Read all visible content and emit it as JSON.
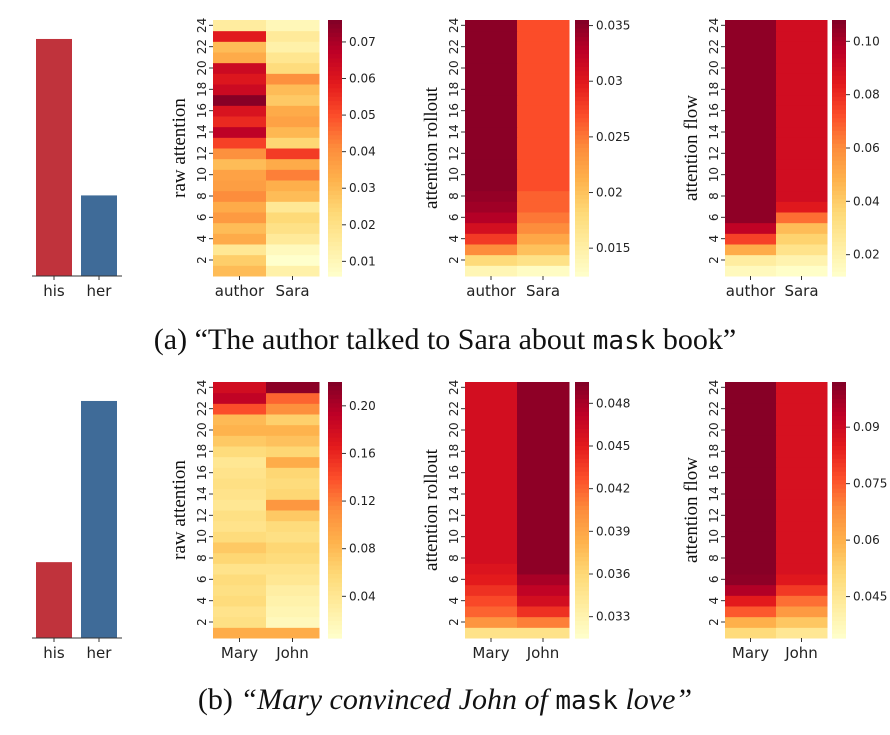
{
  "captions": {
    "a": {
      "prefix": "(a) “The author talked to Sara about ",
      "mask": "mask",
      "suffix": " book”"
    },
    "b": {
      "label": "(b) ",
      "quote_a": "“Mary convinced John of ",
      "mask": "mask",
      "quote_b": " love”"
    }
  },
  "colors": {
    "his": "#c0333c",
    "her": "#3f6b98",
    "colormap": "YlOrRd"
  },
  "chart_data": [
    {
      "type": "bar",
      "row": 0,
      "categories": [
        "his",
        "her"
      ],
      "values": [
        1.0,
        0.34
      ],
      "ylim": [
        0,
        1.08
      ],
      "colors": [
        "#c0333c",
        "#3f6b98"
      ]
    },
    {
      "type": "heatmap",
      "row": 0,
      "ylabel": "raw attention",
      "x_labels": [
        "author",
        "Sara"
      ],
      "y_ticks": [
        2,
        4,
        6,
        8,
        10,
        12,
        14,
        16,
        18,
        20,
        22,
        24
      ],
      "colorbar_ticks": [
        0.01,
        0.02,
        0.03,
        0.04,
        0.05,
        0.06,
        0.07
      ],
      "vmin": 0.006,
      "vmax": 0.076,
      "values": [
        [
          0.03,
          0.013
        ],
        [
          0.026,
          0.006
        ],
        [
          0.017,
          0.009
        ],
        [
          0.034,
          0.016
        ],
        [
          0.03,
          0.02
        ],
        [
          0.038,
          0.023
        ],
        [
          0.034,
          0.017
        ],
        [
          0.041,
          0.03
        ],
        [
          0.037,
          0.033
        ],
        [
          0.036,
          0.043
        ],
        [
          0.03,
          0.034
        ],
        [
          0.04,
          0.053
        ],
        [
          0.052,
          0.024
        ],
        [
          0.067,
          0.031
        ],
        [
          0.056,
          0.036
        ],
        [
          0.061,
          0.034
        ],
        [
          0.075,
          0.027
        ],
        [
          0.064,
          0.03
        ],
        [
          0.06,
          0.04
        ],
        [
          0.064,
          0.022
        ],
        [
          0.034,
          0.018
        ],
        [
          0.03,
          0.013
        ],
        [
          0.059,
          0.016
        ],
        [
          0.015,
          0.01
        ]
      ]
    },
    {
      "type": "heatmap",
      "row": 0,
      "ylabel": "attention rollout",
      "x_labels": [
        "author",
        "Sara"
      ],
      "y_ticks": [
        2,
        4,
        6,
        8,
        10,
        12,
        14,
        16,
        18,
        20,
        22,
        24
      ],
      "colorbar_ticks": [
        0.015,
        0.02,
        0.025,
        0.03,
        0.035
      ],
      "vmin": 0.0125,
      "vmax": 0.0355,
      "values": [
        [
          0.014,
          0.013
        ],
        [
          0.018,
          0.017
        ],
        [
          0.024,
          0.02
        ],
        [
          0.028,
          0.022
        ],
        [
          0.031,
          0.024
        ],
        [
          0.033,
          0.025
        ],
        [
          0.034,
          0.026
        ],
        [
          0.0345,
          0.026
        ],
        [
          0.035,
          0.027
        ],
        [
          0.035,
          0.027
        ],
        [
          0.035,
          0.027
        ],
        [
          0.035,
          0.027
        ],
        [
          0.035,
          0.027
        ],
        [
          0.035,
          0.027
        ],
        [
          0.035,
          0.027
        ],
        [
          0.035,
          0.027
        ],
        [
          0.035,
          0.027
        ],
        [
          0.035,
          0.027
        ],
        [
          0.035,
          0.027
        ],
        [
          0.035,
          0.027
        ],
        [
          0.035,
          0.027
        ],
        [
          0.035,
          0.027
        ],
        [
          0.035,
          0.027
        ],
        [
          0.035,
          0.027
        ]
      ]
    },
    {
      "type": "heatmap",
      "row": 0,
      "ylabel": "attention flow",
      "x_labels": [
        "author",
        "Sara"
      ],
      "y_ticks": [
        2,
        4,
        6,
        8,
        10,
        12,
        14,
        16,
        18,
        20,
        22,
        24
      ],
      "colorbar_ticks": [
        0.02,
        0.04,
        0.06,
        0.08,
        0.1
      ],
      "vmin": 0.012,
      "vmax": 0.108,
      "values": [
        [
          0.016,
          0.013
        ],
        [
          0.024,
          0.02
        ],
        [
          0.05,
          0.03
        ],
        [
          0.075,
          0.038
        ],
        [
          0.095,
          0.045
        ],
        [
          0.105,
          0.066
        ],
        [
          0.105,
          0.085
        ],
        [
          0.105,
          0.09
        ],
        [
          0.105,
          0.09
        ],
        [
          0.105,
          0.09
        ],
        [
          0.105,
          0.09
        ],
        [
          0.105,
          0.09
        ],
        [
          0.105,
          0.09
        ],
        [
          0.105,
          0.09
        ],
        [
          0.105,
          0.09
        ],
        [
          0.105,
          0.09
        ],
        [
          0.105,
          0.09
        ],
        [
          0.105,
          0.09
        ],
        [
          0.105,
          0.09
        ],
        [
          0.105,
          0.09
        ],
        [
          0.105,
          0.09
        ],
        [
          0.105,
          0.09
        ],
        [
          0.105,
          0.09
        ],
        [
          0.105,
          0.09
        ]
      ]
    },
    {
      "type": "bar",
      "row": 1,
      "categories": [
        "his",
        "her"
      ],
      "values": [
        0.32,
        1.0
      ],
      "ylim": [
        0,
        1.08
      ],
      "colors": [
        "#c0333c",
        "#3f6b98"
      ]
    },
    {
      "type": "heatmap",
      "row": 1,
      "ylabel": "raw attention",
      "x_labels": [
        "Mary",
        "John"
      ],
      "y_ticks": [
        2,
        4,
        6,
        8,
        10,
        12,
        14,
        16,
        18,
        20,
        22,
        24
      ],
      "colorbar_ticks": [
        0.04,
        0.08,
        0.12,
        0.16,
        0.2
      ],
      "vmin": 0.005,
      "vmax": 0.22,
      "values": [
        [
          0.09,
          0.09
        ],
        [
          0.05,
          0.015
        ],
        [
          0.045,
          0.02
        ],
        [
          0.055,
          0.025
        ],
        [
          0.05,
          0.03
        ],
        [
          0.055,
          0.04
        ],
        [
          0.045,
          0.045
        ],
        [
          0.06,
          0.055
        ],
        [
          0.07,
          0.06
        ],
        [
          0.055,
          0.05
        ],
        [
          0.045,
          0.055
        ],
        [
          0.05,
          0.07
        ],
        [
          0.04,
          0.105
        ],
        [
          0.045,
          0.06
        ],
        [
          0.05,
          0.055
        ],
        [
          0.045,
          0.06
        ],
        [
          0.04,
          0.09
        ],
        [
          0.055,
          0.06
        ],
        [
          0.07,
          0.075
        ],
        [
          0.085,
          0.085
        ],
        [
          0.08,
          0.065
        ],
        [
          0.14,
          0.11
        ],
        [
          0.19,
          0.13
        ],
        [
          0.18,
          0.215
        ]
      ]
    },
    {
      "type": "heatmap",
      "row": 1,
      "ylabel": "attention rollout",
      "x_labels": [
        "Mary",
        "John"
      ],
      "y_ticks": [
        2,
        4,
        6,
        8,
        10,
        12,
        14,
        16,
        18,
        20,
        22,
        24
      ],
      "colorbar_ticks": [
        0.033,
        0.036,
        0.039,
        0.042,
        0.045,
        0.048
      ],
      "vmin": 0.0315,
      "vmax": 0.0495,
      "values": [
        [
          0.035,
          0.035
        ],
        [
          0.04,
          0.041
        ],
        [
          0.042,
          0.044
        ],
        [
          0.043,
          0.046
        ],
        [
          0.044,
          0.047
        ],
        [
          0.045,
          0.048
        ],
        [
          0.0455,
          0.049
        ],
        [
          0.046,
          0.049
        ],
        [
          0.046,
          0.049
        ],
        [
          0.046,
          0.049
        ],
        [
          0.046,
          0.049
        ],
        [
          0.046,
          0.049
        ],
        [
          0.046,
          0.049
        ],
        [
          0.046,
          0.049
        ],
        [
          0.046,
          0.049
        ],
        [
          0.046,
          0.049
        ],
        [
          0.046,
          0.049
        ],
        [
          0.046,
          0.049
        ],
        [
          0.046,
          0.049
        ],
        [
          0.046,
          0.049
        ],
        [
          0.046,
          0.049
        ],
        [
          0.046,
          0.049
        ],
        [
          0.046,
          0.049
        ],
        [
          0.046,
          0.049
        ]
      ]
    },
    {
      "type": "heatmap",
      "row": 1,
      "ylabel": "attention flow",
      "x_labels": [
        "Mary",
        "John"
      ],
      "y_ticks": [
        2,
        4,
        6,
        8,
        10,
        12,
        14,
        16,
        18,
        20,
        22,
        24
      ],
      "colorbar_ticks": [
        0.045,
        0.06,
        0.075,
        0.09
      ],
      "vmin": 0.034,
      "vmax": 0.102,
      "values": [
        [
          0.05,
          0.045
        ],
        [
          0.06,
          0.055
        ],
        [
          0.075,
          0.065
        ],
        [
          0.085,
          0.072
        ],
        [
          0.095,
          0.08
        ],
        [
          0.1,
          0.086
        ],
        [
          0.101,
          0.088
        ],
        [
          0.101,
          0.088
        ],
        [
          0.101,
          0.088
        ],
        [
          0.101,
          0.088
        ],
        [
          0.101,
          0.088
        ],
        [
          0.101,
          0.088
        ],
        [
          0.101,
          0.088
        ],
        [
          0.101,
          0.088
        ],
        [
          0.101,
          0.088
        ],
        [
          0.101,
          0.088
        ],
        [
          0.101,
          0.088
        ],
        [
          0.101,
          0.088
        ],
        [
          0.101,
          0.088
        ],
        [
          0.101,
          0.088
        ],
        [
          0.101,
          0.088
        ],
        [
          0.101,
          0.088
        ],
        [
          0.101,
          0.088
        ],
        [
          0.101,
          0.088
        ]
      ]
    }
  ]
}
